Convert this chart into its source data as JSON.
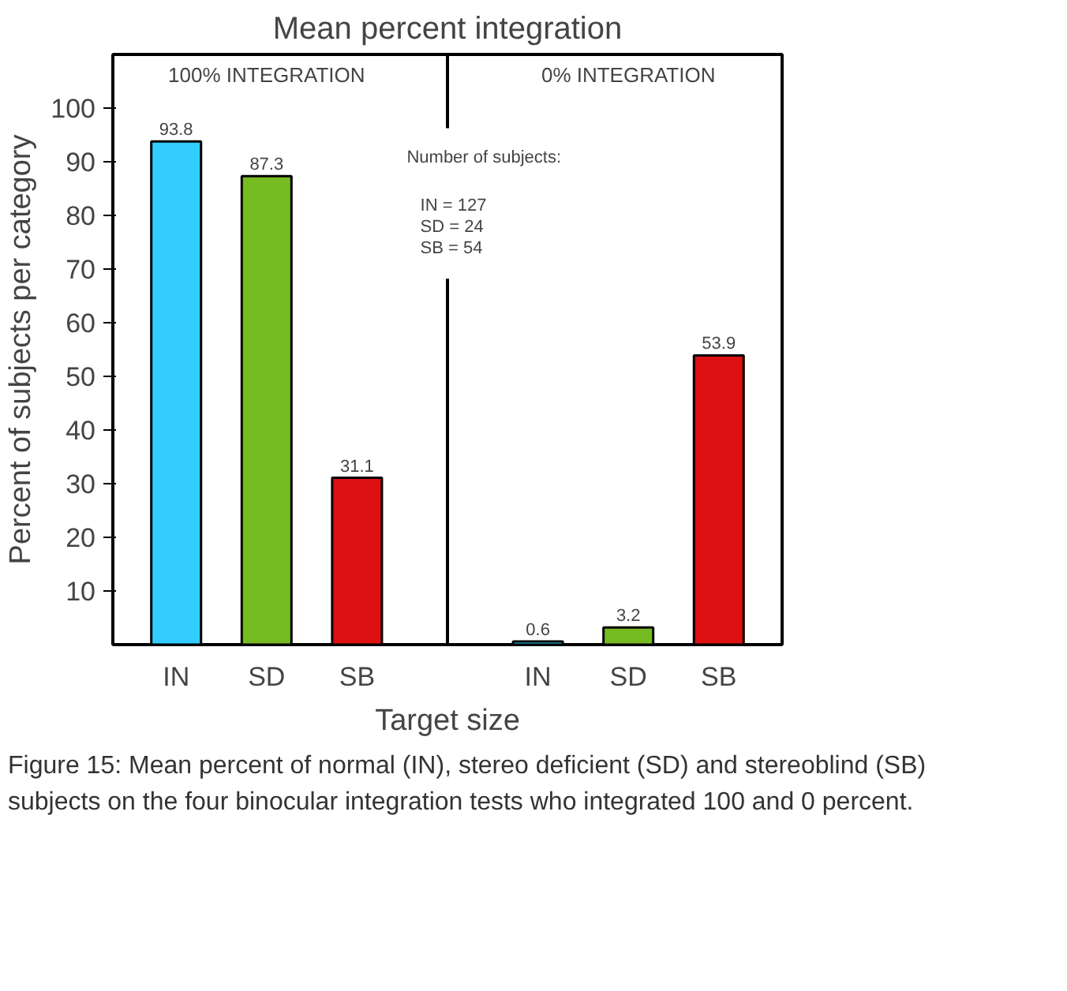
{
  "chart_data": {
    "type": "bar",
    "title": "Mean percent integration",
    "xlabel": "Target size",
    "ylabel": "Percent of subjects per category",
    "categories": [
      "IN",
      "SD",
      "SB",
      null,
      "IN",
      "SD",
      "SB"
    ],
    "values": [
      93.8,
      87.3,
      31.1,
      null,
      0.6,
      3.2,
      53.9
    ],
    "colors": [
      "#33ccff",
      "#77bb22",
      "#dd1111",
      "#ffffff",
      "#33ccff",
      "#77bb22",
      "#dd1111"
    ],
    "data_labels": true,
    "ylim": [
      0,
      110
    ],
    "yticks": [
      10,
      20,
      30,
      40,
      50,
      60,
      70,
      80,
      90,
      100
    ],
    "annotations": [
      "100% INTEGRATION",
      "0% INTEGRATION",
      "Number of subjects:",
      "IN =     127",
      "SD =      24",
      "SB =      54",
      "Figure 15: Mean percent of normal (IN), stereo deficient (SD) and stereoblind (SB) subjects on the four binocular integration tests who integrated 100 and 0 percent."
    ]
  }
}
